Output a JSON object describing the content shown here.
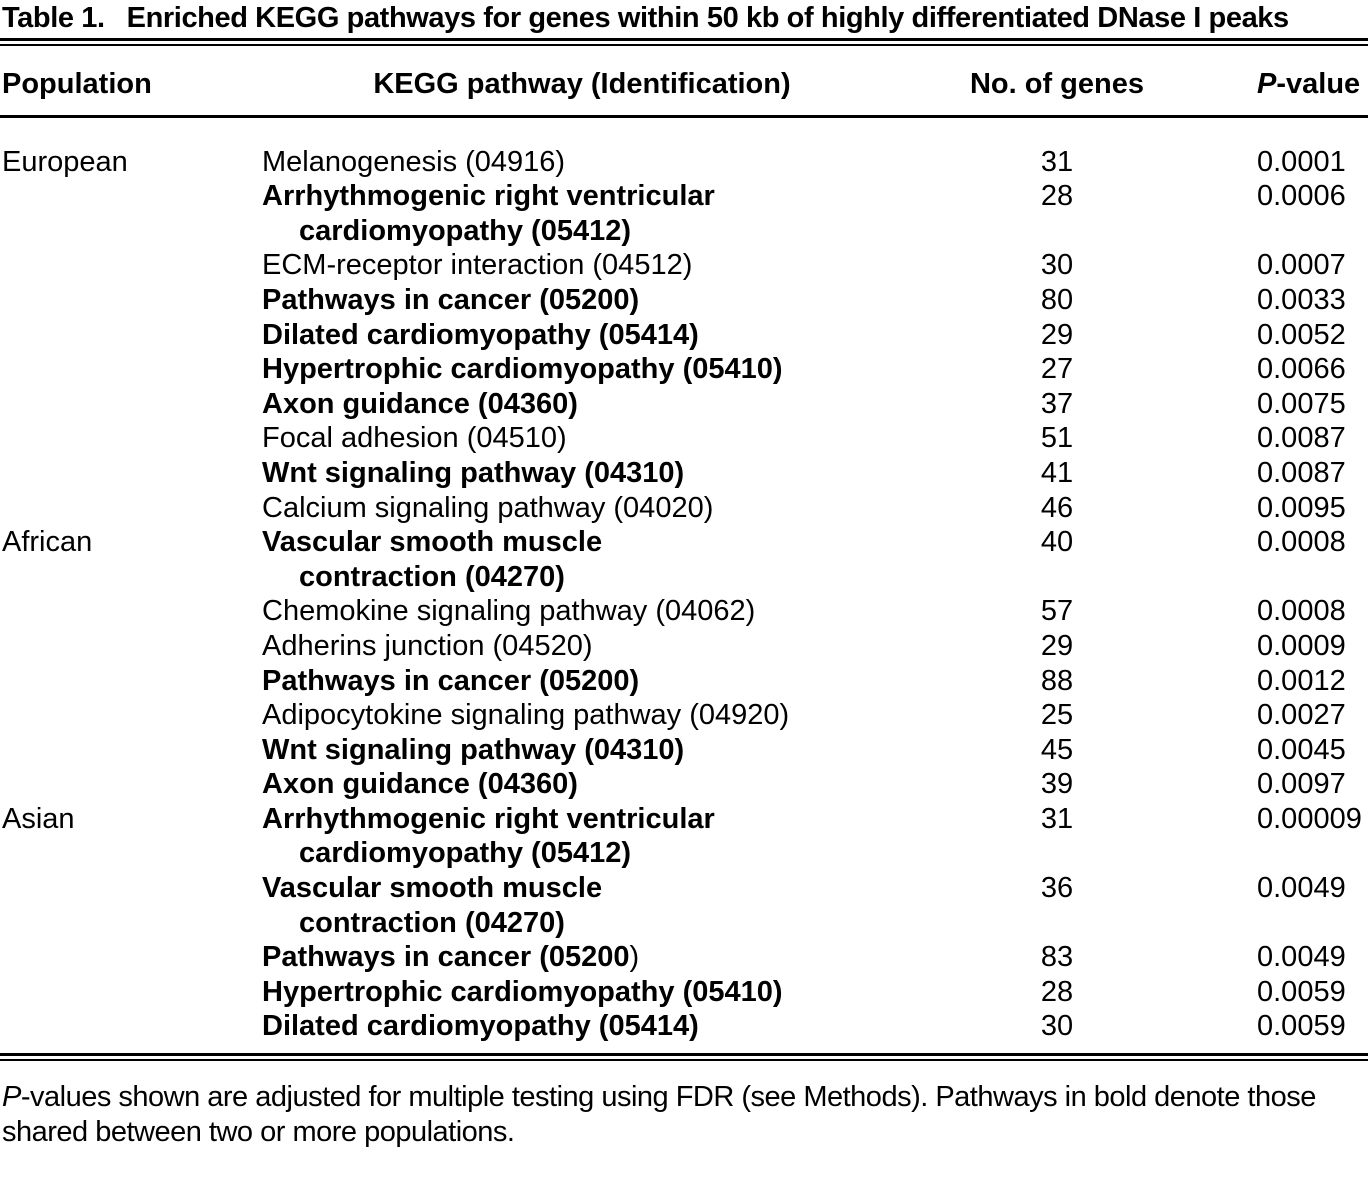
{
  "title": {
    "label": "Table 1.",
    "text": "Enriched KEGG pathways for genes within 50 kb of highly differentiated DNase I peaks"
  },
  "columns": {
    "population": "Population",
    "pathway": "KEGG pathway (Identification)",
    "genes": "No. of genes",
    "pvalue_italic": "P",
    "pvalue_rest": "-value"
  },
  "rows": [
    {
      "population": "European",
      "pathway_lines": [
        "Melanogenesis (04916)"
      ],
      "bold": false,
      "genes": "31",
      "pvalue": "0.0001"
    },
    {
      "population": "",
      "pathway_lines": [
        "Arrhythmogenic right ventricular",
        "cardiomyopathy (05412)"
      ],
      "bold": true,
      "genes": "28",
      "pvalue": "0.0006"
    },
    {
      "population": "",
      "pathway_lines": [
        "ECM-receptor interaction (04512)"
      ],
      "bold": false,
      "genes": "30",
      "pvalue": "0.0007"
    },
    {
      "population": "",
      "pathway_lines": [
        "Pathways in cancer (05200)"
      ],
      "bold": true,
      "genes": "80",
      "pvalue": "0.0033"
    },
    {
      "population": "",
      "pathway_lines": [
        "Dilated cardiomyopathy (05414)"
      ],
      "bold": true,
      "genes": "29",
      "pvalue": "0.0052"
    },
    {
      "population": "",
      "pathway_lines": [
        "Hypertrophic cardiomyopathy (05410)"
      ],
      "bold": true,
      "genes": "27",
      "pvalue": "0.0066"
    },
    {
      "population": "",
      "pathway_lines": [
        "Axon guidance (04360)"
      ],
      "bold": true,
      "genes": "37",
      "pvalue": "0.0075"
    },
    {
      "population": "",
      "pathway_lines": [
        "Focal adhesion (04510)"
      ],
      "bold": false,
      "genes": "51",
      "pvalue": "0.0087"
    },
    {
      "population": "",
      "pathway_lines": [
        "Wnt signaling pathway (04310)"
      ],
      "bold": true,
      "genes": "41",
      "pvalue": "0.0087"
    },
    {
      "population": "",
      "pathway_lines": [
        "Calcium signaling pathway (04020)"
      ],
      "bold": false,
      "genes": "46",
      "pvalue": "0.0095"
    },
    {
      "population": "African",
      "pathway_lines": [
        "Vascular smooth muscle",
        "contraction (04270)"
      ],
      "bold": true,
      "genes": "40",
      "pvalue": "0.0008"
    },
    {
      "population": "",
      "pathway_lines": [
        "Chemokine signaling pathway (04062)"
      ],
      "bold": false,
      "genes": "57",
      "pvalue": "0.0008"
    },
    {
      "population": "",
      "pathway_lines": [
        "Adherins junction (04520)"
      ],
      "bold": false,
      "genes": "29",
      "pvalue": "0.0009"
    },
    {
      "population": "",
      "pathway_lines": [
        "Pathways in cancer (05200)"
      ],
      "bold": true,
      "genes": "88",
      "pvalue": "0.0012"
    },
    {
      "population": "",
      "pathway_lines": [
        "Adipocytokine signaling pathway (04920)"
      ],
      "bold": false,
      "genes": "25",
      "pvalue": "0.0027"
    },
    {
      "population": "",
      "pathway_lines": [
        "Wnt signaling pathway (04310)"
      ],
      "bold": true,
      "genes": "45",
      "pvalue": "0.0045"
    },
    {
      "population": "",
      "pathway_lines": [
        "Axon guidance (04360)"
      ],
      "bold": true,
      "genes": "39",
      "pvalue": "0.0097"
    },
    {
      "population": "Asian",
      "pathway_lines": [
        "Arrhythmogenic right ventricular",
        "cardiomyopathy (05412)"
      ],
      "bold": true,
      "genes": "31",
      "pvalue": "0.00009"
    },
    {
      "population": "",
      "pathway_lines": [
        "Vascular smooth muscle",
        "contraction (04270)"
      ],
      "bold": true,
      "genes": "36",
      "pvalue": "0.0049"
    },
    {
      "population": "",
      "pathway_lines": [
        "Pathways in cancer (05200"
      ],
      "plain_suffix": ")",
      "bold": true,
      "genes": "83",
      "pvalue": "0.0049"
    },
    {
      "population": "",
      "pathway_lines": [
        "Hypertrophic cardiomyopathy (05410)"
      ],
      "bold": true,
      "genes": "28",
      "pvalue": "0.0059"
    },
    {
      "population": "",
      "pathway_lines": [
        "Dilated cardiomyopathy (05414)"
      ],
      "bold": true,
      "genes": "30",
      "pvalue": "0.0059"
    }
  ],
  "footnote": {
    "italic_lead": "P",
    "text": "-values shown are adjusted for multiple testing using FDR (see Methods). Pathways in bold denote those shared between two or more populations."
  },
  "colors": {
    "text": "#000000",
    "background": "#ffffff",
    "rule": "#000000"
  }
}
